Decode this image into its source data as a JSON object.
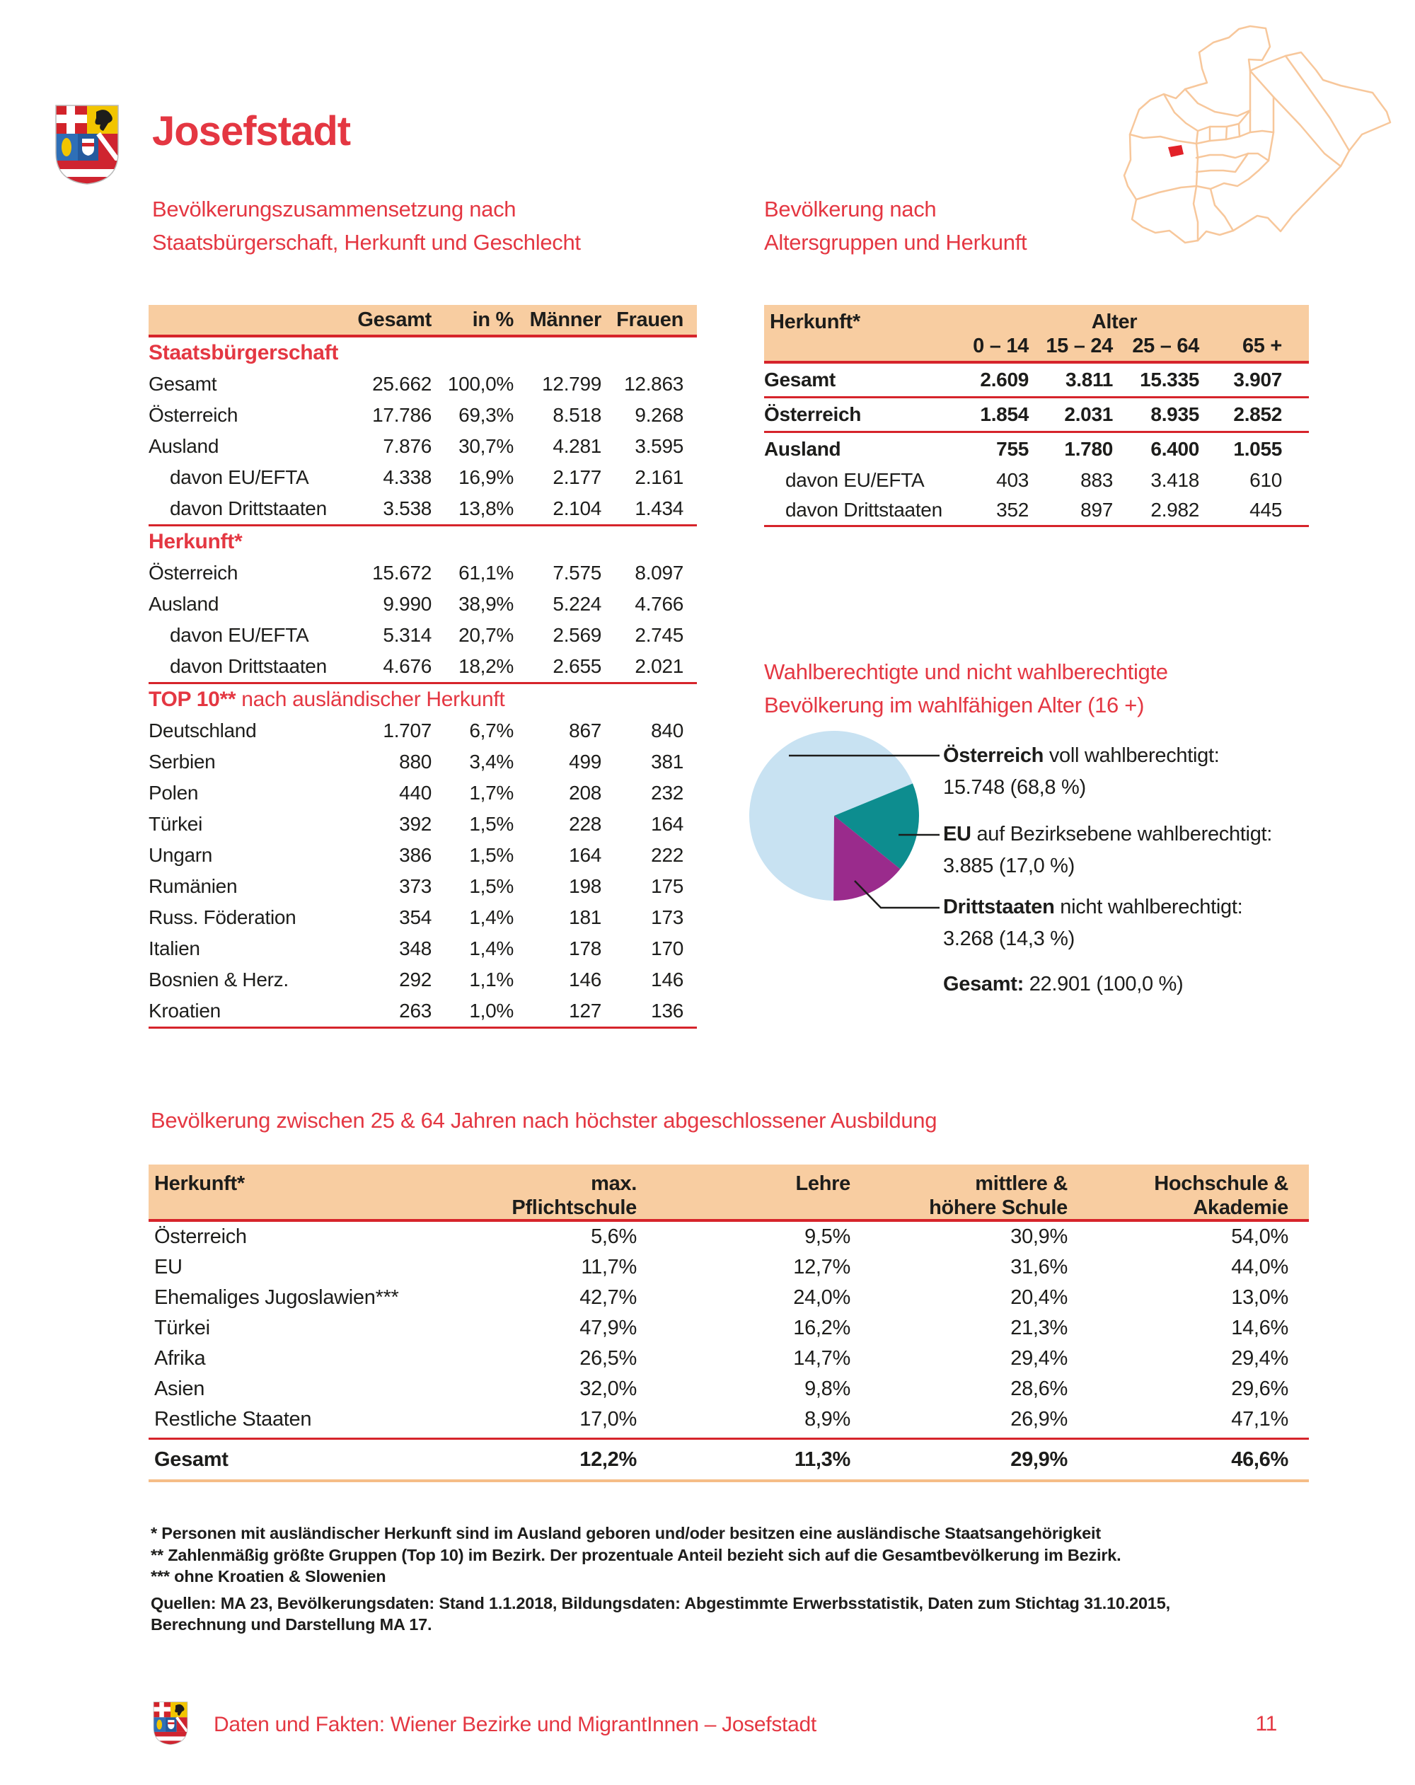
{
  "header": {
    "title": "Josefstadt"
  },
  "sections": {
    "composition": {
      "l1": "Bevölkerungszusammensetzung nach",
      "l2": "Staatsbürgerschaft, Herkunft und Geschlecht"
    },
    "age": {
      "l1": "Bevölkerung nach",
      "l2": "Altersgruppen und Herkunft"
    },
    "voting": {
      "l1": "Wahlberechtigte und nicht wahlberechtigte",
      "l2": "Bevölkerung im wahlfähigen Alter (16 +)"
    },
    "education": {
      "title": "Bevölkerung zwischen 25 & 64 Jahren nach höchster abgeschlossener Ausbildung"
    }
  },
  "main_table": {
    "columns": [
      "Gesamt",
      "in %",
      "Männer",
      "Frauen"
    ],
    "groups": [
      {
        "label": "Staatsbürgerschaft",
        "suffix": "",
        "rows": [
          {
            "label": "Gesamt",
            "values": [
              "25.662",
              "100,0%",
              "12.799",
              "12.863"
            ]
          },
          {
            "label": "Österreich",
            "values": [
              "17.786",
              "69,3%",
              "8.518",
              "9.268"
            ]
          },
          {
            "label": "Ausland",
            "values": [
              "7.876",
              "30,7%",
              "4.281",
              "3.595"
            ]
          },
          {
            "label": "davon EU/EFTA",
            "indent": true,
            "values": [
              "4.338",
              "16,9%",
              "2.177",
              "2.161"
            ]
          },
          {
            "label": "davon Drittstaaten",
            "indent": true,
            "values": [
              "3.538",
              "13,8%",
              "2.104",
              "1.434"
            ]
          }
        ]
      },
      {
        "label": "Herkunft*",
        "suffix": "",
        "rows": [
          {
            "label": "Österreich",
            "values": [
              "15.672",
              "61,1%",
              "7.575",
              "8.097"
            ]
          },
          {
            "label": "Ausland",
            "values": [
              "9.990",
              "38,9%",
              "5.224",
              "4.766"
            ]
          },
          {
            "label": "davon EU/EFTA",
            "indent": true,
            "values": [
              "5.314",
              "20,7%",
              "2.569",
              "2.745"
            ]
          },
          {
            "label": "davon Drittstaaten",
            "indent": true,
            "values": [
              "4.676",
              "18,2%",
              "2.655",
              "2.021"
            ]
          }
        ]
      },
      {
        "label": "TOP 10**",
        "suffix": " nach ausländischer Herkunft",
        "rows": [
          {
            "label": "Deutschland",
            "values": [
              "1.707",
              "6,7%",
              "867",
              "840"
            ]
          },
          {
            "label": "Serbien",
            "values": [
              "880",
              "3,4%",
              "499",
              "381"
            ]
          },
          {
            "label": "Polen",
            "values": [
              "440",
              "1,7%",
              "208",
              "232"
            ]
          },
          {
            "label": "Türkei",
            "values": [
              "392",
              "1,5%",
              "228",
              "164"
            ]
          },
          {
            "label": "Ungarn",
            "values": [
              "386",
              "1,5%",
              "164",
              "222"
            ]
          },
          {
            "label": "Rumänien",
            "values": [
              "373",
              "1,5%",
              "198",
              "175"
            ]
          },
          {
            "label": "Russ. Föderation",
            "values": [
              "354",
              "1,4%",
              "181",
              "173"
            ]
          },
          {
            "label": "Italien",
            "values": [
              "348",
              "1,4%",
              "178",
              "170"
            ]
          },
          {
            "label": "Bosnien & Herz.",
            "values": [
              "292",
              "1,1%",
              "146",
              "146"
            ]
          },
          {
            "label": "Kroatien",
            "values": [
              "263",
              "1,0%",
              "127",
              "136"
            ]
          }
        ]
      }
    ]
  },
  "age_table": {
    "corner": "Herkunft*",
    "group_header": "Alter",
    "columns": [
      "0 – 14",
      "15 – 24",
      "25 – 64",
      "65 +"
    ],
    "groups": [
      {
        "rows": [
          {
            "label": "Gesamt",
            "bold": true,
            "values": [
              "2.609",
              "3.811",
              "15.335",
              "3.907"
            ]
          }
        ]
      },
      {
        "rows": [
          {
            "label": "Österreich",
            "bold": true,
            "values": [
              "1.854",
              "2.031",
              "8.935",
              "2.852"
            ]
          }
        ]
      },
      {
        "rows": [
          {
            "label": "Ausland",
            "bold": true,
            "values": [
              "755",
              "1.780",
              "6.400",
              "1.055"
            ]
          },
          {
            "label": "davon EU/EFTA",
            "indent": true,
            "sub": true,
            "values": [
              "403",
              "883",
              "3.418",
              "610"
            ]
          },
          {
            "label": "davon Drittstaaten",
            "indent": true,
            "sub": true,
            "values": [
              "352",
              "897",
              "2.982",
              "445"
            ]
          }
        ]
      }
    ]
  },
  "pie": {
    "slices": [
      {
        "name": "Österreich",
        "rest": " voll wahlberechtigt:",
        "value": "15.748 (68,8 %)"
      },
      {
        "name": "EU",
        "rest": " auf Bezirksebene wahlberechtigt:",
        "value": "3.885 (17,0 %)"
      },
      {
        "name": "Drittstaaten",
        "rest": " nicht wahlberechtigt:",
        "value": "3.268 (14,3 %)"
      }
    ],
    "total_label": "Gesamt:",
    "total_value": " 22.901 (100,0 %)"
  },
  "chart_data": {
    "type": "pie",
    "title": "Wahlberechtigte und nicht wahlberechtigte Bevölkerung im wahlfähigen Alter (16 +)",
    "labels": [
      "Österreich voll wahlberechtigt",
      "EU auf Bezirksebene wahlberechtigt",
      "Drittstaaten nicht wahlberechtigt"
    ],
    "values": [
      15748,
      3885,
      3268
    ],
    "percentages": [
      68.8,
      17.0,
      14.3
    ],
    "colors": [
      "#c8e2f2",
      "#0d8d8f",
      "#9a2b8c"
    ],
    "total": 22901,
    "start_angle_deg": 180,
    "direction": "clockwise",
    "legend_position": "right"
  },
  "edu_table": {
    "columns": [
      "Herkunft*",
      "max.\nPflichtschule",
      "Lehre",
      "mittlere &\nhöhere Schule",
      "Hochschule &\nAkademie"
    ],
    "rows": [
      {
        "label": "Österreich",
        "values": [
          "5,6%",
          "9,5%",
          "30,9%",
          "54,0%"
        ]
      },
      {
        "label": "EU",
        "values": [
          "11,7%",
          "12,7%",
          "31,6%",
          "44,0%"
        ]
      },
      {
        "label": "Ehemaliges Jugoslawien***",
        "values": [
          "42,7%",
          "24,0%",
          "20,4%",
          "13,0%"
        ]
      },
      {
        "label": "Türkei",
        "values": [
          "47,9%",
          "16,2%",
          "21,3%",
          "14,6%"
        ]
      },
      {
        "label": "Afrika",
        "values": [
          "26,5%",
          "14,7%",
          "29,4%",
          "29,4%"
        ]
      },
      {
        "label": "Asien",
        "values": [
          "32,0%",
          "9,8%",
          "28,6%",
          "29,6%"
        ]
      },
      {
        "label": "Restliche Staaten",
        "values": [
          "17,0%",
          "8,9%",
          "26,9%",
          "47,1%"
        ]
      }
    ],
    "total": {
      "label": "Gesamt",
      "values": [
        "12,2%",
        "11,3%",
        "29,9%",
        "46,6%"
      ]
    }
  },
  "footnotes": [
    "* Personen mit ausländischer Herkunft sind im Ausland geboren und/oder besitzen eine ausländische Staatsangehörigkeit",
    "** Zahlenmäßig größte Gruppen (Top 10) im Bezirk. Der prozentuale Anteil bezieht sich auf die Gesamtbevölkerung im Bezirk.",
    "*** ohne Kroatien & Slowenien",
    "Quellen: MA 23, Bevölkerungsdaten: Stand 1.1.2018, Bildungsdaten: Abgestimmte Erwerbsstatistik, Daten zum Stichtag 31.10.2015,",
    "Berechnung und Darstellung MA 17."
  ],
  "footer": {
    "text": "Daten und Fakten: Wiener Bezirke und MigrantInnen – Josefstadt",
    "page": "11"
  }
}
